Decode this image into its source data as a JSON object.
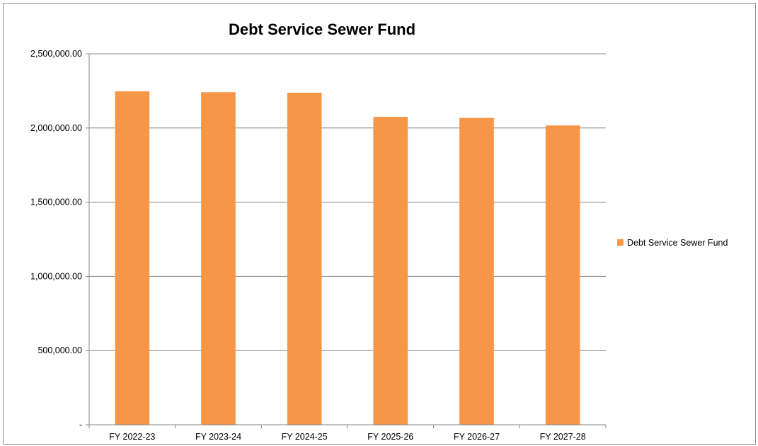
{
  "chart_data": {
    "type": "bar",
    "title": "Debt Service Sewer Fund",
    "categories": [
      "FY 2022-23",
      "FY 2023-24",
      "FY 2024-25",
      "FY 2025-26",
      "FY 2026-27",
      "FY 2027-28"
    ],
    "series": [
      {
        "name": "Debt Service Sewer Fund",
        "color": "#f79646",
        "values": [
          2247000,
          2241000,
          2238000,
          2075000,
          2068000,
          2017000
        ]
      }
    ],
    "xlabel": "",
    "ylabel": "",
    "ylim": [
      0,
      2500000
    ],
    "yticks": [
      0,
      500000,
      1000000,
      1500000,
      2000000,
      2500000
    ],
    "ytick_labels": [
      "-",
      "500,000.00",
      "1,000,000.00",
      "1,500,000.00",
      "2,000,000.00",
      "2,500,000.00"
    ],
    "grid": true,
    "legend_position": "right"
  }
}
